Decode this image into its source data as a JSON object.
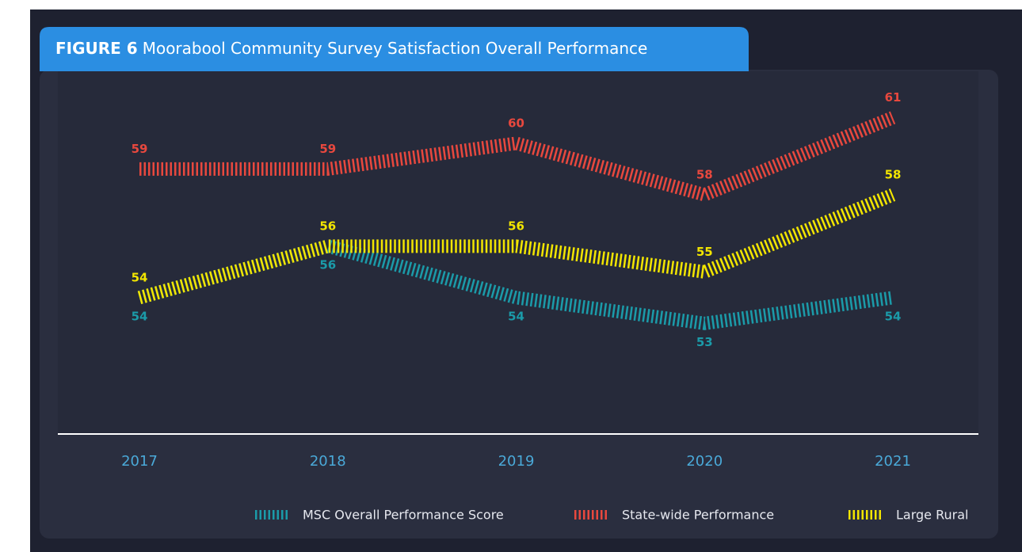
{
  "chart_data": {
    "type": "line",
    "figure_label": "FIGURE 6",
    "title": "Moorabool Community Survey Satisfaction Overall Performance",
    "categories": [
      "2017",
      "2018",
      "2019",
      "2020",
      "2021"
    ],
    "series": [
      {
        "name": "MSC Overall Performance Score",
        "color": "#1b9ba9",
        "values": [
          54,
          56,
          54,
          53,
          54
        ]
      },
      {
        "name": "State-wide Performance",
        "color": "#e8483e",
        "values": [
          59,
          59,
          60,
          58,
          61
        ]
      },
      {
        "name": "Large Rural",
        "color": "#f2e500",
        "values": [
          54,
          56,
          56,
          55,
          58
        ]
      }
    ],
    "ylim": [
      48.7,
      62.8
    ]
  }
}
